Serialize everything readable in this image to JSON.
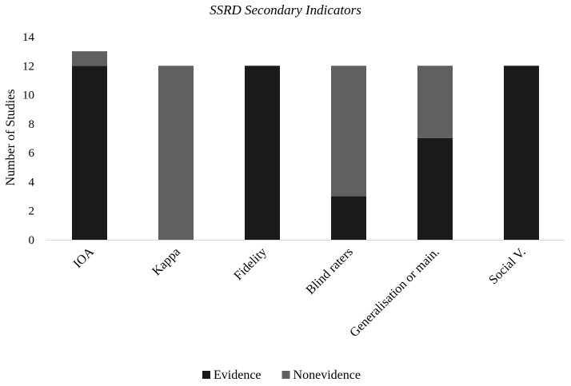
{
  "chart_data": {
    "type": "bar",
    "stacked": true,
    "title": "SSRD Secondary Indicators",
    "xlabel": "",
    "ylabel": "Number of Studies",
    "ylim": [
      0,
      14
    ],
    "yticks": [
      0,
      2,
      4,
      6,
      8,
      10,
      12,
      14
    ],
    "grid": false,
    "legend_position": "bottom",
    "categories": [
      "IOA",
      "Kappa",
      "Fidelity",
      "Blind raters",
      "Generalisation or main.",
      "Social V."
    ],
    "series": [
      {
        "name": "Evidence",
        "color": "#1a1a1a",
        "values": [
          12,
          0,
          12,
          3,
          7,
          12
        ]
      },
      {
        "name": "Nonevidence",
        "color": "#606060",
        "values": [
          1,
          12,
          0,
          9,
          5,
          0
        ]
      }
    ]
  }
}
